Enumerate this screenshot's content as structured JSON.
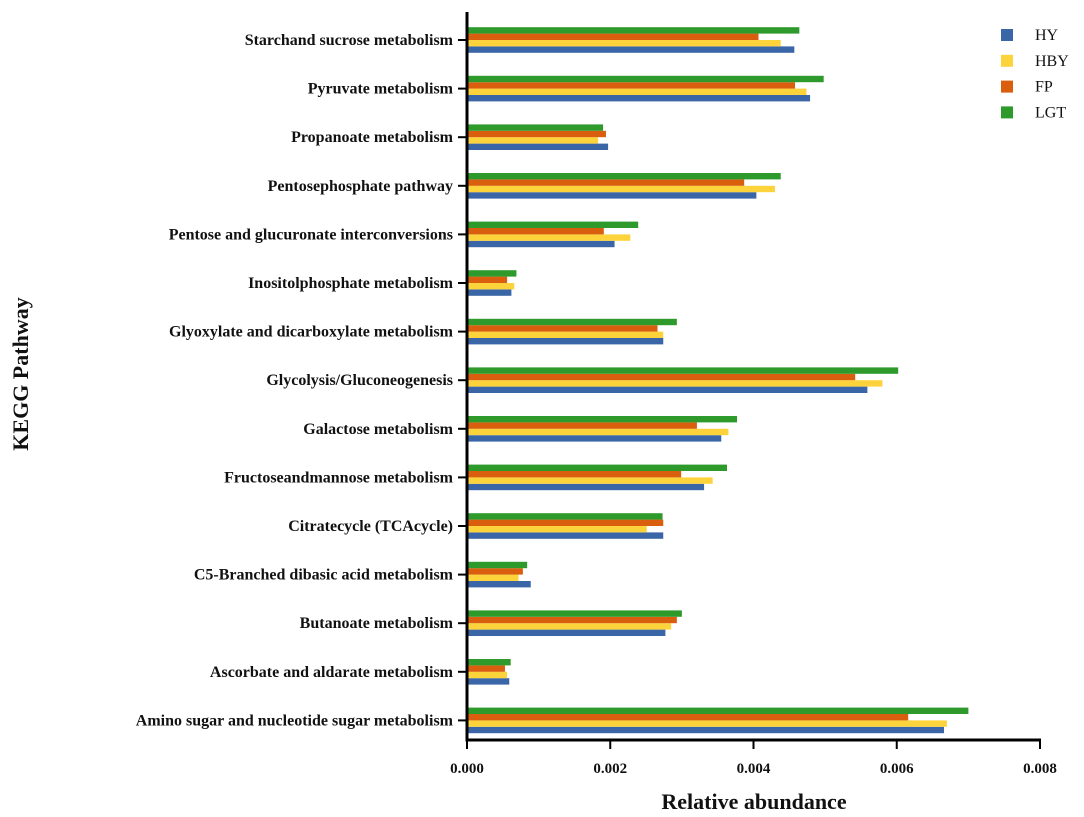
{
  "chart_data": {
    "type": "bar",
    "orientation": "horizontal",
    "xlabel": "Relative abundance",
    "ylabel": "KEGG Pathway",
    "xlim": [
      0,
      0.008
    ],
    "xticks": [
      "0.000",
      "0.002",
      "0.004",
      "0.006",
      "0.008"
    ],
    "legend_position": "top-right",
    "categories": [
      "Starchand sucrose metabolism",
      "Pyruvate metabolism",
      "Propanoate metabolism",
      "Pentosephosphate pathway",
      "Pentose and glucuronate interconversions",
      "Inositolphosphate metabolism",
      "Glyoxylate and dicarboxylate metabolism",
      "Glycolysis/Gluconeogenesis",
      "Galactose metabolism",
      "Fructoseandmannose metabolism",
      "Citratecycle (TCAcycle)",
      "C5-Branched dibasic acid metabolism",
      "Butanoate metabolism",
      "Ascorbate and aldarate metabolism",
      "Amino sugar and nucleotide sugar metabolism"
    ],
    "series": [
      {
        "name": "HY",
        "color": "#3a66a8",
        "values": [
          0.00457,
          0.00479,
          0.00197,
          0.00404,
          0.00206,
          0.00062,
          0.00274,
          0.00559,
          0.00355,
          0.00331,
          0.00274,
          0.00089,
          0.00277,
          0.00059,
          0.00666
        ]
      },
      {
        "name": "HBY",
        "color": "#fdd33c",
        "values": [
          0.00438,
          0.00474,
          0.00183,
          0.0043,
          0.00228,
          0.00066,
          0.00274,
          0.0058,
          0.00365,
          0.00343,
          0.00251,
          0.00072,
          0.00285,
          0.00056,
          0.0067
        ]
      },
      {
        "name": "FP",
        "color": "#d95f0e",
        "values": [
          0.00407,
          0.00458,
          0.00194,
          0.00387,
          0.00191,
          0.00056,
          0.00266,
          0.00542,
          0.00321,
          0.00299,
          0.00274,
          0.00078,
          0.00293,
          0.00053,
          0.00616
        ]
      },
      {
        "name": "LGT",
        "color": "#2f9a2c",
        "values": [
          0.00464,
          0.00498,
          0.0019,
          0.00438,
          0.00239,
          0.00069,
          0.00293,
          0.00602,
          0.00377,
          0.00363,
          0.00273,
          0.00084,
          0.003,
          0.00061,
          0.007
        ]
      }
    ]
  }
}
